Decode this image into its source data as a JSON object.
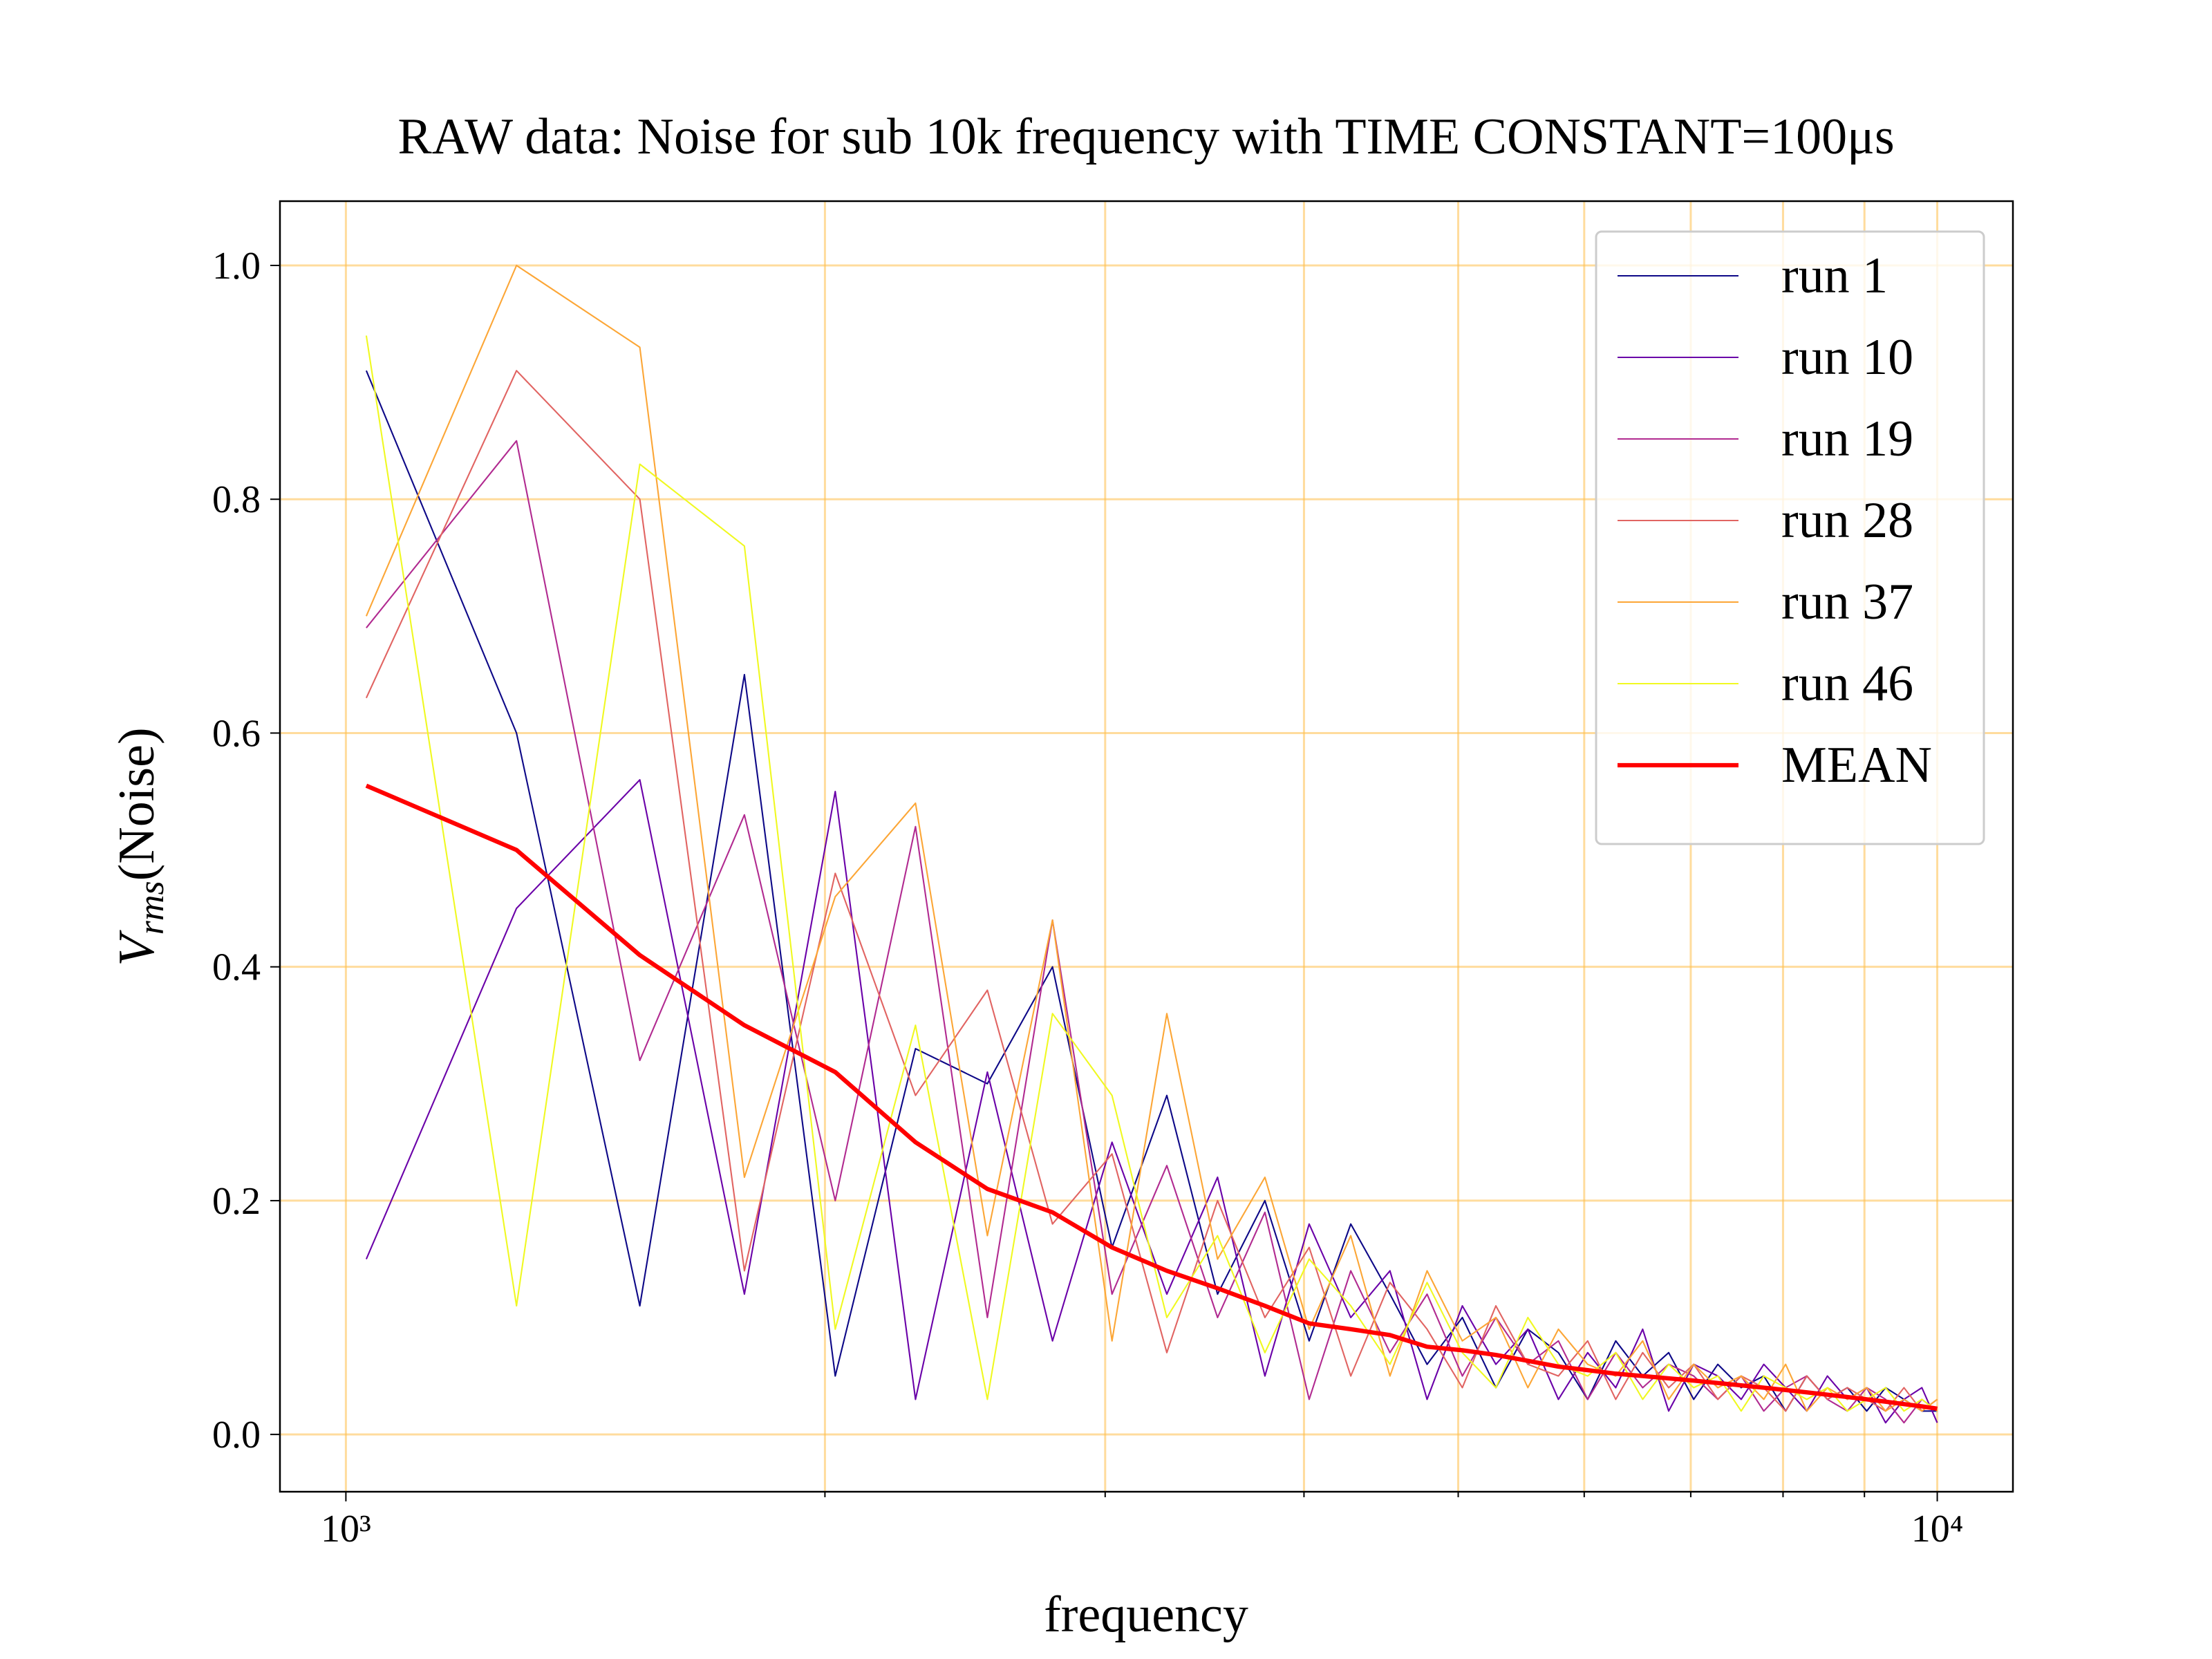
{
  "chart_data": {
    "type": "line",
    "title": "RAW data: Noise for sub 10k frequency with TIME CONSTANT=100μs",
    "xlabel": "frequency",
    "ylabel": [
      "V",
      "rms",
      "(Noise)"
    ],
    "xscale": "log",
    "xlim": [
      909,
      11157
    ],
    "ylim": [
      -0.049,
      1.055
    ],
    "xticks": [
      {
        "value": 1000,
        "label": "10³"
      },
      {
        "value": 10000,
        "label": "10⁴"
      }
    ],
    "xminorticks": [
      2000,
      3000,
      4000,
      5000,
      6000,
      7000,
      8000,
      9000
    ],
    "yticks": [
      {
        "value": 0,
        "label": "0.0"
      },
      {
        "value": 0.2,
        "label": "0.2"
      },
      {
        "value": 0.4,
        "label": "0.4"
      },
      {
        "value": 0.6,
        "label": "0.6"
      },
      {
        "value": 0.8,
        "label": "0.8"
      },
      {
        "value": 1,
        "label": "1.0"
      }
    ],
    "grid": true,
    "legend": "upper right",
    "x": [
      1030,
      1280,
      1530,
      1780,
      2030,
      2280,
      2530,
      2780,
      3030,
      3280,
      3530,
      3780,
      4030,
      4280,
      4530,
      4780,
      5030,
      5280,
      5530,
      5780,
      6030,
      6280,
      6530,
      6780,
      7030,
      7280,
      7530,
      7780,
      8030,
      8280,
      8530,
      8780,
      9030,
      9280,
      9530,
      9780,
      10000
    ],
    "series": [
      {
        "name": "run 1",
        "color": "#0d0887",
        "width": 1,
        "values": [
          0.91,
          0.6,
          0.11,
          0.65,
          0.05,
          0.33,
          0.3,
          0.4,
          0.16,
          0.29,
          0.12,
          0.2,
          0.08,
          0.18,
          0.12,
          0.06,
          0.1,
          0.04,
          0.09,
          0.07,
          0.03,
          0.08,
          0.05,
          0.07,
          0.03,
          0.06,
          0.04,
          0.05,
          0.02,
          0.05,
          0.03,
          0.04,
          0.02,
          0.04,
          0.03,
          0.02,
          0.02
        ]
      },
      {
        "name": "run 10",
        "color": "#6a00a8",
        "width": 1,
        "values": [
          0.15,
          0.45,
          0.56,
          0.12,
          0.55,
          0.03,
          0.31,
          0.08,
          0.25,
          0.12,
          0.22,
          0.05,
          0.18,
          0.1,
          0.14,
          0.03,
          0.11,
          0.06,
          0.09,
          0.03,
          0.07,
          0.04,
          0.09,
          0.02,
          0.06,
          0.05,
          0.03,
          0.06,
          0.04,
          0.02,
          0.05,
          0.03,
          0.04,
          0.01,
          0.03,
          0.04,
          0.01
        ]
      },
      {
        "name": "run 19",
        "color": "#b12a90",
        "width": 1,
        "values": [
          0.69,
          0.85,
          0.32,
          0.53,
          0.2,
          0.52,
          0.1,
          0.44,
          0.12,
          0.23,
          0.1,
          0.19,
          0.03,
          0.14,
          0.07,
          0.12,
          0.05,
          0.1,
          0.06,
          0.08,
          0.03,
          0.07,
          0.04,
          0.06,
          0.05,
          0.03,
          0.05,
          0.02,
          0.04,
          0.05,
          0.03,
          0.02,
          0.04,
          0.03,
          0.01,
          0.03,
          0.02
        ]
      },
      {
        "name": "run 28",
        "color": "#e16462",
        "width": 1,
        "values": [
          0.63,
          0.91,
          0.8,
          0.14,
          0.48,
          0.29,
          0.38,
          0.18,
          0.24,
          0.07,
          0.2,
          0.1,
          0.16,
          0.05,
          0.13,
          0.09,
          0.04,
          0.11,
          0.06,
          0.05,
          0.08,
          0.03,
          0.07,
          0.04,
          0.06,
          0.03,
          0.05,
          0.04,
          0.02,
          0.05,
          0.03,
          0.04,
          0.03,
          0.02,
          0.04,
          0.02,
          0.03
        ]
      },
      {
        "name": "run 37",
        "color": "#fca636",
        "width": 1,
        "values": [
          0.7,
          1.0,
          0.93,
          0.22,
          0.46,
          0.54,
          0.17,
          0.44,
          0.08,
          0.36,
          0.15,
          0.22,
          0.09,
          0.17,
          0.05,
          0.14,
          0.08,
          0.1,
          0.04,
          0.09,
          0.06,
          0.05,
          0.08,
          0.03,
          0.06,
          0.04,
          0.05,
          0.03,
          0.06,
          0.02,
          0.04,
          0.03,
          0.04,
          0.02,
          0.03,
          0.02,
          0.03
        ]
      },
      {
        "name": "run 46",
        "color": "#f0f921",
        "width": 1,
        "values": [
          0.94,
          0.11,
          0.83,
          0.76,
          0.09,
          0.35,
          0.03,
          0.36,
          0.29,
          0.1,
          0.17,
          0.07,
          0.15,
          0.11,
          0.06,
          0.13,
          0.07,
          0.04,
          0.1,
          0.06,
          0.05,
          0.07,
          0.03,
          0.06,
          0.04,
          0.05,
          0.02,
          0.05,
          0.04,
          0.03,
          0.04,
          0.02,
          0.03,
          0.04,
          0.02,
          0.03,
          0.02
        ]
      },
      {
        "name": "MEAN",
        "color": "#ff0000",
        "width": 3,
        "values": [
          0.555,
          0.5,
          0.41,
          0.35,
          0.31,
          0.25,
          0.21,
          0.19,
          0.16,
          0.14,
          0.125,
          0.11,
          0.095,
          0.09,
          0.085,
          0.075,
          0.072,
          0.068,
          0.063,
          0.058,
          0.055,
          0.052,
          0.05,
          0.048,
          0.046,
          0.044,
          0.042,
          0.04,
          0.038,
          0.036,
          0.034,
          0.032,
          0.03,
          0.028,
          0.026,
          0.024,
          0.022
        ]
      }
    ]
  }
}
